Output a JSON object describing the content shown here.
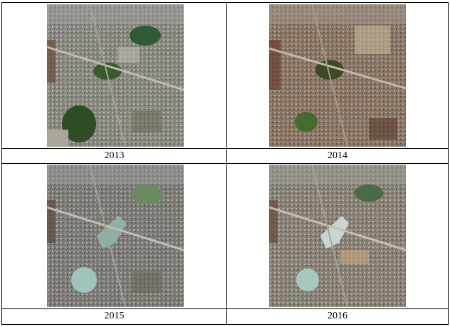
{
  "panels": [
    {
      "year": "2013",
      "tone": "2013"
    },
    {
      "year": "2014",
      "tone": "2014"
    },
    {
      "year": "2015",
      "tone": "2015"
    },
    {
      "year": "2016",
      "tone": "2016"
    }
  ],
  "colors": {
    "border": "#000000",
    "urban_grey": "#8b8a83",
    "vegetation_green": "#3d5a2c",
    "lake_water": "#9ec4bc",
    "soil_brown": "#8a6a4d"
  }
}
